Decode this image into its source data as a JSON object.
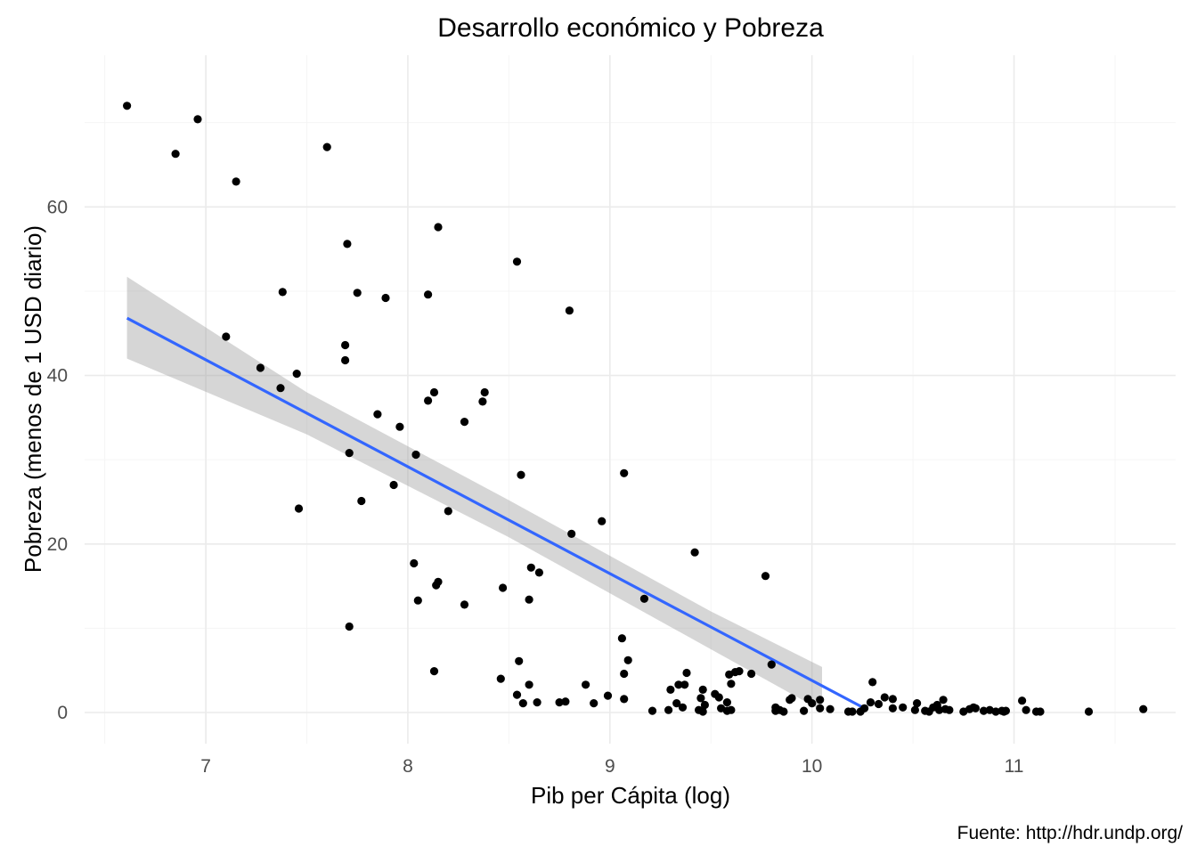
{
  "chart_data": {
    "type": "scatter",
    "title": "Desarrollo económico y Pobreza",
    "xlabel": "Pib per Cápita (log)",
    "ylabel": "Pobreza (menos de 1 USD diario)",
    "caption": "Fuente: http://hdr.undp.org/",
    "xlim": [
      6.4,
      11.8
    ],
    "ylim": [
      -3.7,
      78
    ],
    "x_ticks": [
      7,
      8,
      9,
      10,
      11
    ],
    "x_tick_labels": [
      "7",
      "8",
      "9",
      "10",
      "11"
    ],
    "y_ticks": [
      0,
      20,
      40,
      60
    ],
    "y_tick_labels": [
      "0",
      "20",
      "40",
      "60"
    ],
    "grid": true,
    "legend": "none",
    "colors": {
      "points": "#000000",
      "fit_line": "#3366FF",
      "confidence_band": "#999999",
      "grid": "#EBEBEB"
    },
    "points": [
      [
        6.61,
        72.0
      ],
      [
        6.85,
        66.3
      ],
      [
        6.96,
        70.4
      ],
      [
        7.1,
        44.6
      ],
      [
        7.15,
        63.0
      ],
      [
        7.27,
        40.9
      ],
      [
        7.37,
        38.5
      ],
      [
        7.38,
        49.9
      ],
      [
        7.45,
        40.2
      ],
      [
        7.46,
        24.2
      ],
      [
        7.6,
        67.1
      ],
      [
        7.69,
        41.8
      ],
      [
        7.69,
        43.6
      ],
      [
        7.7,
        55.6
      ],
      [
        7.71,
        30.8
      ],
      [
        7.71,
        10.2
      ],
      [
        7.75,
        49.8
      ],
      [
        7.77,
        25.1
      ],
      [
        7.85,
        35.4
      ],
      [
        7.89,
        49.2
      ],
      [
        7.93,
        27.0
      ],
      [
        7.96,
        33.9
      ],
      [
        8.03,
        17.7
      ],
      [
        8.04,
        30.6
      ],
      [
        8.05,
        13.3
      ],
      [
        8.1,
        37.0
      ],
      [
        8.1,
        49.6
      ],
      [
        8.13,
        4.9
      ],
      [
        8.13,
        38.0
      ],
      [
        8.14,
        15.1
      ],
      [
        8.15,
        15.5
      ],
      [
        8.15,
        57.6
      ],
      [
        8.2,
        23.9
      ],
      [
        8.28,
        34.5
      ],
      [
        8.28,
        12.8
      ],
      [
        8.37,
        36.9
      ],
      [
        8.38,
        38.0
      ],
      [
        8.46,
        4.0
      ],
      [
        8.47,
        14.8
      ],
      [
        8.54,
        2.1
      ],
      [
        8.54,
        53.5
      ],
      [
        8.55,
        6.1
      ],
      [
        8.56,
        28.2
      ],
      [
        8.57,
        1.1
      ],
      [
        8.6,
        3.3
      ],
      [
        8.6,
        13.4
      ],
      [
        8.61,
        17.2
      ],
      [
        8.64,
        1.2
      ],
      [
        8.65,
        16.6
      ],
      [
        8.75,
        1.2
      ],
      [
        8.78,
        1.3
      ],
      [
        8.8,
        47.7
      ],
      [
        8.81,
        21.2
      ],
      [
        8.88,
        3.3
      ],
      [
        8.92,
        1.1
      ],
      [
        8.96,
        22.7
      ],
      [
        8.99,
        2.0
      ],
      [
        9.06,
        8.8
      ],
      [
        9.07,
        4.6
      ],
      [
        9.07,
        28.4
      ],
      [
        9.07,
        1.6
      ],
      [
        9.09,
        6.2
      ],
      [
        9.17,
        13.5
      ],
      [
        9.21,
        0.2
      ],
      [
        9.29,
        0.3
      ],
      [
        9.3,
        2.7
      ],
      [
        9.33,
        1.1
      ],
      [
        9.34,
        3.3
      ],
      [
        9.36,
        0.6
      ],
      [
        9.37,
        3.3
      ],
      [
        9.38,
        4.7
      ],
      [
        9.42,
        19.0
      ],
      [
        9.44,
        0.3
      ],
      [
        9.45,
        1.7
      ],
      [
        9.46,
        2.7
      ],
      [
        9.46,
        0.1
      ],
      [
        9.47,
        0.9
      ],
      [
        9.52,
        2.2
      ],
      [
        9.54,
        1.8
      ],
      [
        9.55,
        0.5
      ],
      [
        9.58,
        1.2
      ],
      [
        9.58,
        0.2
      ],
      [
        9.59,
        4.5
      ],
      [
        9.6,
        3.4
      ],
      [
        9.6,
        0.3
      ],
      [
        9.62,
        4.8
      ],
      [
        9.64,
        4.9
      ],
      [
        9.7,
        4.6
      ],
      [
        9.77,
        16.2
      ],
      [
        9.8,
        5.7
      ],
      [
        9.82,
        0.2
      ],
      [
        9.82,
        0.6
      ],
      [
        9.84,
        0.3
      ],
      [
        9.86,
        0.1
      ],
      [
        9.89,
        1.5
      ],
      [
        9.9,
        1.7
      ],
      [
        9.96,
        0.2
      ],
      [
        9.98,
        1.6
      ],
      [
        10.0,
        1.1
      ],
      [
        10.04,
        1.5
      ],
      [
        10.04,
        0.5
      ],
      [
        10.09,
        0.4
      ],
      [
        10.18,
        0.1
      ],
      [
        10.2,
        0.1
      ],
      [
        10.24,
        0.1
      ],
      [
        10.26,
        0.5
      ],
      [
        10.29,
        1.2
      ],
      [
        10.3,
        3.6
      ],
      [
        10.33,
        1.0
      ],
      [
        10.36,
        1.8
      ],
      [
        10.4,
        1.6
      ],
      [
        10.4,
        0.5
      ],
      [
        10.45,
        0.6
      ],
      [
        10.51,
        0.3
      ],
      [
        10.52,
        1.1
      ],
      [
        10.56,
        0.2
      ],
      [
        10.58,
        0.1
      ],
      [
        10.6,
        0.6
      ],
      [
        10.62,
        0.9
      ],
      [
        10.63,
        0.3
      ],
      [
        10.65,
        1.5
      ],
      [
        10.66,
        0.4
      ],
      [
        10.68,
        0.3
      ],
      [
        10.75,
        0.1
      ],
      [
        10.78,
        0.4
      ],
      [
        10.8,
        0.6
      ],
      [
        10.81,
        0.5
      ],
      [
        10.85,
        0.2
      ],
      [
        10.88,
        0.3
      ],
      [
        10.91,
        0.1
      ],
      [
        10.94,
        0.2
      ],
      [
        10.95,
        0.1
      ],
      [
        10.96,
        0.2
      ],
      [
        11.04,
        1.4
      ],
      [
        11.06,
        0.3
      ],
      [
        11.11,
        0.1
      ],
      [
        11.13,
        0.1
      ],
      [
        11.37,
        0.1
      ],
      [
        11.64,
        0.4
      ]
    ],
    "fit": {
      "method": "lm",
      "x_start": 6.61,
      "x_end": 10.26,
      "y_start": 46.8,
      "y_end": 0.5
    },
    "confidence_band": [
      [
        6.61,
        42.0,
        51.7
      ],
      [
        7.5,
        33.0,
        38.0
      ],
      [
        8.5,
        20.8,
        25.2
      ],
      [
        9.5,
        7.5,
        12.0
      ],
      [
        10.05,
        0.2,
        5.4
      ]
    ]
  }
}
